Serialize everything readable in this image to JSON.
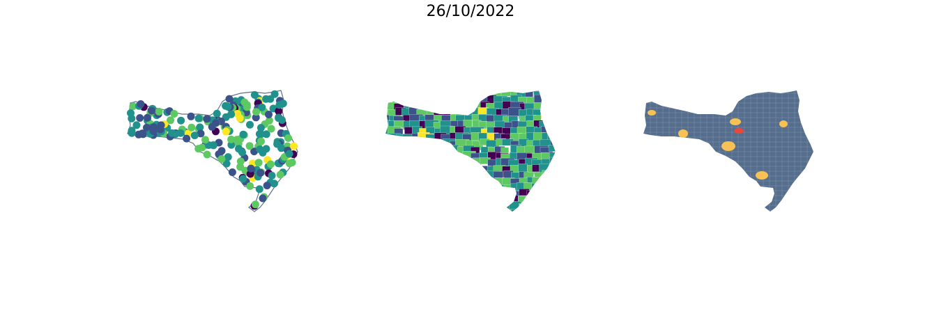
{
  "title": "26/10/2022",
  "colors": {
    "viridis": [
      "#440154",
      "#3b528b",
      "#21918c",
      "#5ec962",
      "#fde725"
    ],
    "outline": "#5b6f8d",
    "class_base": "#566e8e",
    "class_warn": "#f8c153",
    "class_alert": "#e8473d",
    "class_orange": "#f7941d"
  },
  "panels": [
    {
      "id": "points",
      "kind": "point-map",
      "legend": []
    },
    {
      "id": "choropleth",
      "kind": "choropleth",
      "legend": []
    },
    {
      "id": "classification",
      "kind": "categorical-choropleth",
      "legend": []
    }
  ]
}
